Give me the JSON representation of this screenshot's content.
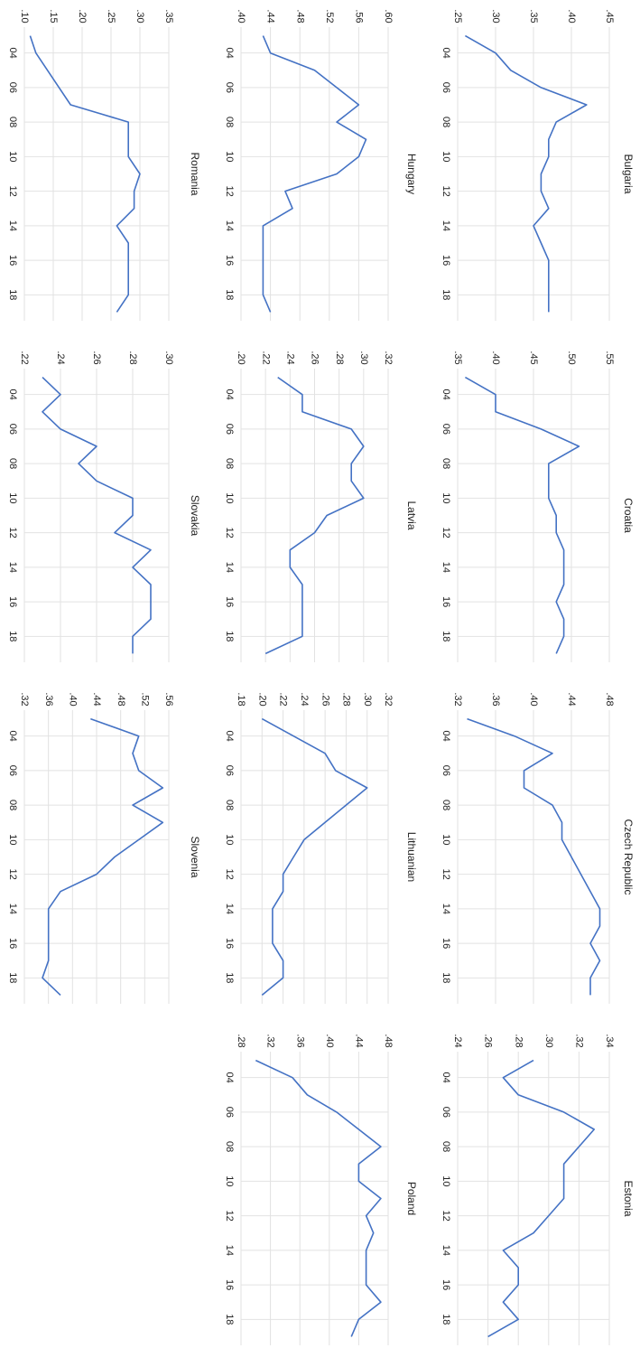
{
  "chart_data": [
    {
      "type": "line",
      "title": "Bulgaria",
      "color": "#4472c4",
      "categories": [
        null,
        "04",
        null,
        "06",
        null,
        "08",
        null,
        "10",
        null,
        "12",
        null,
        "14",
        null,
        "16",
        null,
        "18",
        null
      ],
      "values": [
        0.26,
        0.3,
        0.32,
        0.36,
        0.42,
        0.38,
        0.37,
        0.37,
        0.36,
        0.36,
        0.37,
        0.35,
        0.36,
        0.37,
        0.37,
        0.37,
        0.37
      ],
      "ylim": [
        0.25,
        0.45
      ],
      "yticks": [
        {
          "value": 0.25,
          "label": ".25"
        },
        {
          "value": 0.3,
          "label": ".30"
        },
        {
          "value": 0.35,
          "label": ".35"
        },
        {
          "value": 0.4,
          "label": ".40"
        },
        {
          "value": 0.45,
          "label": ".45"
        }
      ]
    },
    {
      "type": "line",
      "title": "Croatia",
      "color": "#4472c4",
      "categories": [
        null,
        "04",
        null,
        "06",
        null,
        "08",
        null,
        "10",
        null,
        "12",
        null,
        "14",
        null,
        "16",
        null,
        "18",
        null
      ],
      "values": [
        0.36,
        0.4,
        0.4,
        0.46,
        0.51,
        0.47,
        0.47,
        0.47,
        0.48,
        0.48,
        0.49,
        0.49,
        0.49,
        0.48,
        0.49,
        0.49,
        0.48
      ],
      "ylim": [
        0.35,
        0.55
      ],
      "yticks": [
        {
          "value": 0.35,
          "label": ".35"
        },
        {
          "value": 0.4,
          "label": ".40"
        },
        {
          "value": 0.45,
          "label": ".45"
        },
        {
          "value": 0.5,
          "label": ".50"
        },
        {
          "value": 0.55,
          "label": ".55"
        }
      ]
    },
    {
      "type": "line",
      "title": "Czech Republic",
      "color": "#4472c4",
      "categories": [
        null,
        "04",
        null,
        "06",
        null,
        "08",
        null,
        "10",
        null,
        "12",
        null,
        "14",
        null,
        "16",
        null,
        "18",
        null
      ],
      "values": [
        0.33,
        0.38,
        0.42,
        0.39,
        0.39,
        0.42,
        0.43,
        0.43,
        0.44,
        0.45,
        0.46,
        0.47,
        0.47,
        0.46,
        0.47,
        0.46,
        0.46
      ],
      "ylim": [
        0.32,
        0.48
      ],
      "yticks": [
        {
          "value": 0.32,
          "label": ".32"
        },
        {
          "value": 0.36,
          "label": ".36"
        },
        {
          "value": 0.4,
          "label": ".40"
        },
        {
          "value": 0.44,
          "label": ".44"
        },
        {
          "value": 0.48,
          "label": ".48"
        }
      ]
    },
    {
      "type": "line",
      "title": "Estonia",
      "color": "#4472c4",
      "categories": [
        null,
        "04",
        null,
        "06",
        null,
        "08",
        null,
        "10",
        null,
        "12",
        null,
        "14",
        null,
        "16",
        null,
        "18",
        null
      ],
      "values": [
        0.29,
        0.27,
        0.28,
        0.31,
        0.33,
        0.32,
        0.31,
        0.31,
        0.31,
        0.3,
        0.29,
        0.27,
        0.28,
        0.28,
        0.27,
        0.28,
        0.26
      ],
      "ylim": [
        0.24,
        0.34
      ],
      "yticks": [
        {
          "value": 0.24,
          "label": ".24"
        },
        {
          "value": 0.26,
          "label": ".26"
        },
        {
          "value": 0.28,
          "label": ".28"
        },
        {
          "value": 0.3,
          "label": ".30"
        },
        {
          "value": 0.32,
          "label": ".32"
        },
        {
          "value": 0.34,
          "label": ".34"
        }
      ]
    },
    {
      "type": "line",
      "title": "Hungary",
      "color": "#4472c4",
      "categories": [
        null,
        "04",
        null,
        "06",
        null,
        "08",
        null,
        "10",
        null,
        "12",
        null,
        "14",
        null,
        "16",
        null,
        "18",
        null
      ],
      "values": [
        0.43,
        0.44,
        0.5,
        0.53,
        0.56,
        0.53,
        0.57,
        0.56,
        0.53,
        0.46,
        0.47,
        0.43,
        0.43,
        0.43,
        0.43,
        0.43,
        0.44
      ],
      "ylim": [
        0.4,
        0.6
      ],
      "yticks": [
        {
          "value": 0.4,
          "label": ".40"
        },
        {
          "value": 0.44,
          "label": ".44"
        },
        {
          "value": 0.48,
          "label": ".48"
        },
        {
          "value": 0.52,
          "label": ".52"
        },
        {
          "value": 0.56,
          "label": ".56"
        },
        {
          "value": 0.6,
          "label": ".60"
        }
      ]
    },
    {
      "type": "line",
      "title": "Latvia",
      "color": "#4472c4",
      "categories": [
        null,
        "04",
        null,
        "06",
        null,
        "08",
        null,
        "10",
        null,
        "12",
        null,
        "14",
        null,
        "16",
        null,
        "18",
        null
      ],
      "values": [
        0.23,
        0.25,
        0.25,
        0.29,
        0.3,
        0.29,
        0.29,
        0.3,
        0.27,
        0.26,
        0.24,
        0.24,
        0.25,
        0.25,
        0.25,
        0.25,
        0.22
      ],
      "ylim": [
        0.2,
        0.32
      ],
      "yticks": [
        {
          "value": 0.2,
          "label": ".20"
        },
        {
          "value": 0.22,
          "label": ".22"
        },
        {
          "value": 0.24,
          "label": ".24"
        },
        {
          "value": 0.26,
          "label": ".26"
        },
        {
          "value": 0.28,
          "label": ".28"
        },
        {
          "value": 0.3,
          "label": ".30"
        },
        {
          "value": 0.32,
          "label": ".32"
        }
      ]
    },
    {
      "type": "line",
      "title": "Lithuanian",
      "color": "#4472c4",
      "categories": [
        null,
        "04",
        null,
        "06",
        null,
        "08",
        null,
        "10",
        null,
        "12",
        null,
        "14",
        null,
        "16",
        null,
        "18",
        null
      ],
      "values": [
        0.2,
        0.23,
        0.26,
        0.27,
        0.3,
        0.28,
        0.26,
        0.24,
        0.23,
        0.22,
        0.22,
        0.21,
        0.21,
        0.21,
        0.22,
        0.22,
        0.2
      ],
      "ylim": [
        0.18,
        0.32
      ],
      "yticks": [
        {
          "value": 0.18,
          "label": ".18"
        },
        {
          "value": 0.2,
          "label": ".20"
        },
        {
          "value": 0.22,
          "label": ".22"
        },
        {
          "value": 0.24,
          "label": ".24"
        },
        {
          "value": 0.26,
          "label": ".26"
        },
        {
          "value": 0.28,
          "label": ".28"
        },
        {
          "value": 0.3,
          "label": ".30"
        },
        {
          "value": 0.32,
          "label": ".32"
        }
      ]
    },
    {
      "type": "line",
      "title": "Poland",
      "color": "#4472c4",
      "categories": [
        null,
        "04",
        null,
        "06",
        null,
        "08",
        null,
        "10",
        null,
        "12",
        null,
        "14",
        null,
        "16",
        null,
        "18",
        null
      ],
      "values": [
        0.3,
        0.35,
        0.37,
        0.41,
        0.44,
        0.47,
        0.44,
        0.44,
        0.47,
        0.45,
        0.46,
        0.45,
        0.45,
        0.45,
        0.47,
        0.44,
        0.43
      ],
      "ylim": [
        0.28,
        0.48
      ],
      "yticks": [
        {
          "value": 0.28,
          "label": ".28"
        },
        {
          "value": 0.32,
          "label": ".32"
        },
        {
          "value": 0.36,
          "label": ".36"
        },
        {
          "value": 0.4,
          "label": ".40"
        },
        {
          "value": 0.44,
          "label": ".44"
        },
        {
          "value": 0.48,
          "label": ".48"
        }
      ]
    },
    {
      "type": "line",
      "title": "Romania",
      "color": "#4472c4",
      "categories": [
        null,
        "04",
        null,
        "06",
        null,
        "08",
        null,
        "10",
        null,
        "12",
        null,
        "14",
        null,
        "16",
        null,
        "18",
        null
      ],
      "values": [
        0.11,
        0.12,
        0.14,
        0.16,
        0.18,
        0.28,
        0.28,
        0.28,
        0.3,
        0.29,
        0.29,
        0.26,
        0.28,
        0.28,
        0.28,
        0.28,
        0.26
      ],
      "ylim": [
        0.1,
        0.35
      ],
      "yticks": [
        {
          "value": 0.1,
          "label": ".10"
        },
        {
          "value": 0.15,
          "label": ".15"
        },
        {
          "value": 0.2,
          "label": ".20"
        },
        {
          "value": 0.25,
          "label": ".25"
        },
        {
          "value": 0.3,
          "label": ".30"
        },
        {
          "value": 0.35,
          "label": ".35"
        }
      ]
    },
    {
      "type": "line",
      "title": "Slovakia",
      "color": "#4472c4",
      "categories": [
        null,
        "04",
        null,
        "06",
        null,
        "08",
        null,
        "10",
        null,
        "12",
        null,
        "14",
        null,
        "16",
        null,
        "18",
        null
      ],
      "values": [
        0.23,
        0.24,
        0.23,
        0.24,
        0.26,
        0.25,
        0.26,
        0.28,
        0.28,
        0.27,
        0.29,
        0.28,
        0.29,
        0.29,
        0.29,
        0.28,
        0.28
      ],
      "ylim": [
        0.22,
        0.3
      ],
      "yticks": [
        {
          "value": 0.22,
          "label": ".22"
        },
        {
          "value": 0.24,
          "label": ".24"
        },
        {
          "value": 0.26,
          "label": ".26"
        },
        {
          "value": 0.28,
          "label": ".28"
        },
        {
          "value": 0.3,
          "label": ".30"
        }
      ]
    },
    {
      "type": "line",
      "title": "Slovenia",
      "color": "#4472c4",
      "categories": [
        null,
        "04",
        null,
        "06",
        null,
        "08",
        null,
        "10",
        null,
        "12",
        null,
        "14",
        null,
        "16",
        null,
        "18",
        null
      ],
      "values": [
        0.43,
        0.51,
        0.5,
        0.51,
        0.55,
        0.5,
        0.55,
        0.51,
        0.47,
        0.44,
        0.38,
        0.36,
        0.36,
        0.36,
        0.36,
        0.35,
        0.38
      ],
      "ylim": [
        0.32,
        0.56
      ],
      "yticks": [
        {
          "value": 0.32,
          "label": ".32"
        },
        {
          "value": 0.36,
          "label": ".36"
        },
        {
          "value": 0.4,
          "label": ".40"
        },
        {
          "value": 0.44,
          "label": ".44"
        },
        {
          "value": 0.48,
          "label": ".48"
        },
        {
          "value": 0.52,
          "label": ".52"
        },
        {
          "value": 0.56,
          "label": ".56"
        }
      ]
    }
  ]
}
